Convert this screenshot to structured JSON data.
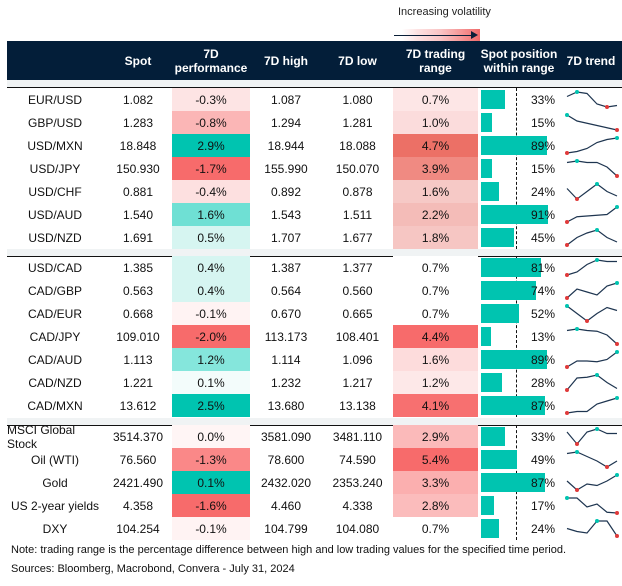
{
  "legend": {
    "label": "Increasing volatility"
  },
  "columns": {
    "spot": "Spot",
    "perf": "7D performance",
    "high": "7D high",
    "low": "7D low",
    "range": "7D trading range",
    "position": "Spot position within range",
    "trend": "7D trend"
  },
  "colors": {
    "header": "#031e39",
    "teal": "#00c4b0",
    "max_marker": "#00c4b0",
    "min_marker": "#e03a3a"
  },
  "groups": [
    [
      {
        "name": "EUR/USD",
        "spot": "1.082",
        "perf": "-0.3%",
        "high": "1.087",
        "low": "1.080",
        "range": "0.7%",
        "position": 33,
        "perf_color": "#fde4e4",
        "range_color": "#fde6e6",
        "trend": [
          0.7,
          1,
          0.9,
          0.2,
          0,
          0.1
        ]
      },
      {
        "name": "GBP/USD",
        "spot": "1.283",
        "perf": "-0.8%",
        "high": "1.294",
        "low": "1.281",
        "range": "1.0%",
        "position": 15,
        "perf_color": "#fbb6b6",
        "range_color": "#fbdcdc",
        "trend": [
          1,
          0.6,
          0.45,
          0.3,
          0.15,
          0
        ]
      },
      {
        "name": "USD/MXN",
        "spot": "18.848",
        "perf": "2.9%",
        "high": "18.944",
        "low": "18.088",
        "range": "4.7%",
        "position": 89,
        "perf_color": "#00c4b0",
        "range_color": "#ec7066",
        "trend": [
          0,
          0.1,
          0.3,
          0.7,
          0.9,
          1
        ]
      },
      {
        "name": "USD/JPY",
        "spot": "150.930",
        "perf": "-1.7%",
        "high": "155.990",
        "low": "150.070",
        "range": "3.9%",
        "position": 15,
        "perf_color": "#f76b6b",
        "range_color": "#f08a82",
        "trend": [
          0.9,
          1,
          0.9,
          0.9,
          0.6,
          0
        ]
      },
      {
        "name": "USD/CHF",
        "spot": "0.881",
        "perf": "-0.4%",
        "high": "0.892",
        "low": "0.878",
        "range": "1.6%",
        "position": 24,
        "perf_color": "#fde0e0",
        "range_color": "#f6c9c6",
        "trend": [
          0.7,
          0,
          0.5,
          1,
          0.5,
          0.2
        ]
      },
      {
        "name": "USD/AUD",
        "spot": "1.540",
        "perf": "1.6%",
        "high": "1.543",
        "low": "1.511",
        "range": "2.2%",
        "position": 91,
        "perf_color": "#6fe0d4",
        "range_color": "#f4bcb8",
        "trend": [
          0,
          0.35,
          0.4,
          0.45,
          0.5,
          1
        ]
      },
      {
        "name": "USD/NZD",
        "spot": "1.691",
        "perf": "0.5%",
        "high": "1.707",
        "low": "1.677",
        "range": "1.8%",
        "position": 45,
        "perf_color": "#d6f5f1",
        "range_color": "#f6c6c3",
        "trend": [
          0,
          0.5,
          0.8,
          1,
          0.5,
          0.2
        ]
      }
    ],
    [
      {
        "name": "USD/CAD",
        "spot": "1.385",
        "perf": "0.4%",
        "high": "1.387",
        "low": "1.377",
        "range": "0.7%",
        "position": 81,
        "perf_color": "#d6f5f1",
        "range_color": "#ffffff",
        "trend": [
          0,
          0.2,
          0.7,
          1,
          0.9,
          0.9
        ]
      },
      {
        "name": "CAD/GBP",
        "spot": "0.563",
        "perf": "0.4%",
        "high": "0.564",
        "low": "0.560",
        "range": "0.7%",
        "position": 74,
        "perf_color": "#d6f5f1",
        "range_color": "#ffffff",
        "trend": [
          0,
          0.6,
          0.4,
          0.2,
          0.8,
          1
        ]
      },
      {
        "name": "CAD/EUR",
        "spot": "0.668",
        "perf": "-0.1%",
        "high": "0.670",
        "low": "0.665",
        "range": "0.7%",
        "position": 52,
        "perf_color": "#fff3f3",
        "range_color": "#ffffff",
        "trend": [
          1,
          0.5,
          0,
          0.5,
          0.9,
          0.7
        ]
      },
      {
        "name": "CAD/JPY",
        "spot": "109.010",
        "perf": "-2.0%",
        "high": "113.173",
        "low": "108.401",
        "range": "4.4%",
        "position": 13,
        "perf_color": "#f76b6b",
        "range_color": "#f76b6b",
        "trend": [
          0.9,
          1,
          0.9,
          0.85,
          0.6,
          0
        ]
      },
      {
        "name": "CAD/AUD",
        "spot": "1.113",
        "perf": "1.2%",
        "high": "1.114",
        "low": "1.096",
        "range": "1.6%",
        "position": 89,
        "perf_color": "#85e6dc",
        "range_color": "#fddcdc",
        "trend": [
          0,
          0.4,
          0.4,
          0.35,
          0.5,
          1
        ]
      },
      {
        "name": "CAD/NZD",
        "spot": "1.221",
        "perf": "0.1%",
        "high": "1.232",
        "low": "1.217",
        "range": "1.2%",
        "position": 28,
        "perf_color": "#f3fcfb",
        "range_color": "#fde8e8",
        "trend": [
          0,
          0.8,
          0.85,
          1,
          0.5,
          0.1
        ]
      },
      {
        "name": "CAD/MXN",
        "spot": "13.612",
        "perf": "2.5%",
        "high": "13.680",
        "low": "13.138",
        "range": "4.1%",
        "position": 87,
        "perf_color": "#00c4b0",
        "range_color": "#f77070",
        "trend": [
          0,
          0.1,
          0.1,
          0.6,
          0.8,
          1
        ]
      }
    ],
    [
      {
        "name": "MSCI Global Stock",
        "spot": "3514.370",
        "perf": "0.0%",
        "high": "3581.090",
        "low": "3481.110",
        "range": "2.9%",
        "position": 33,
        "perf_color": "#fff5f5",
        "range_color": "#fbbaba",
        "trend": [
          0.8,
          0,
          0.8,
          1,
          0.7,
          0.7
        ]
      },
      {
        "name": "Oil (WTI)",
        "spot": "76.560",
        "perf": "-1.3%",
        "high": "78.600",
        "low": "74.590",
        "range": "5.4%",
        "position": 49,
        "perf_color": "#fa8888",
        "range_color": "#f76b6b",
        "trend": [
          0.9,
          1,
          0.7,
          0.4,
          0,
          0.4
        ]
      },
      {
        "name": "Gold",
        "spot": "2421.490",
        "perf": "0.1%",
        "high": "2432.020",
        "low": "2353.240",
        "range": "3.3%",
        "position": 87,
        "perf_color": "#00c4b0",
        "range_color": "#fbafaf",
        "trend": [
          0.6,
          0,
          0.4,
          0.3,
          0.6,
          1
        ]
      },
      {
        "name": "US 2-year yields",
        "spot": "4.358",
        "perf": "-1.6%",
        "high": "4.460",
        "low": "4.338",
        "range": "2.8%",
        "position": 17,
        "perf_color": "#f76b6b",
        "range_color": "#fbbcbc",
        "trend": [
          1,
          1,
          0.4,
          0.6,
          0.05,
          0
        ]
      },
      {
        "name": "DXY",
        "spot": "104.254",
        "perf": "-0.1%",
        "high": "104.799",
        "low": "104.080",
        "range": "0.7%",
        "position": 24,
        "perf_color": "#fff3f3",
        "range_color": "#ffffff",
        "trend": [
          0.5,
          0.3,
          0.2,
          1,
          1,
          0
        ]
      }
    ]
  ],
  "footer": {
    "note": "Note: trading range is the percentage difference between high and low trading values for the specified time period.",
    "sources": "Sources: Bloomberg, Macrobond, Convera - July 31, 2024"
  }
}
